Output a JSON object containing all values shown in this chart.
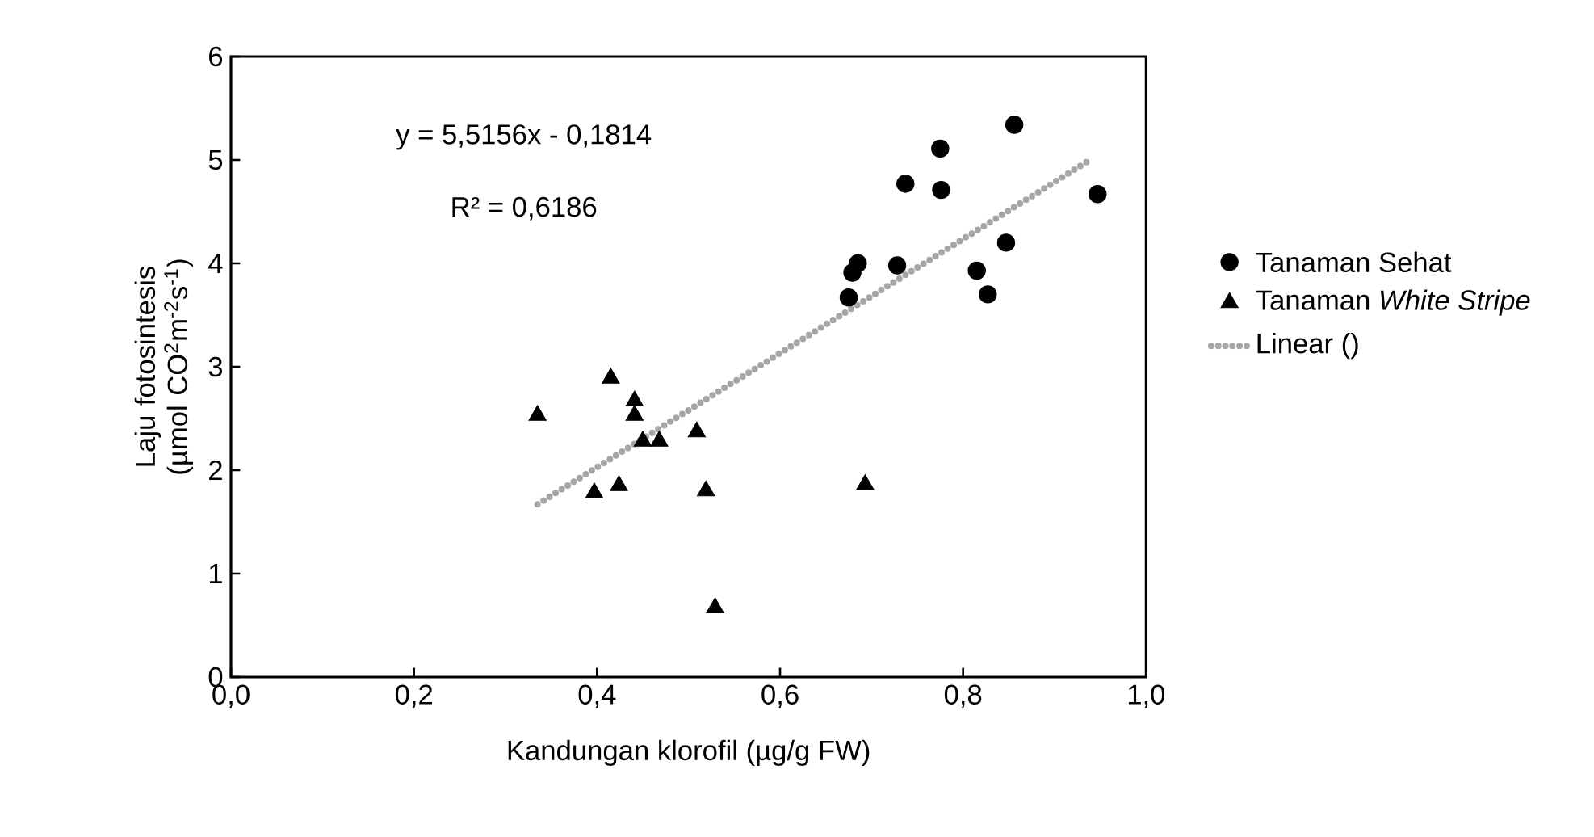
{
  "chart_data": {
    "type": "scatter",
    "xlabel": "Kandungan klorofil (µg/g FW)",
    "ylabel": "Laju fotosintesis (µmol CO$^{2}$m$^{-2}$s$^{-1}$)",
    "xlim": [
      0,
      1
    ],
    "ylim": [
      0,
      6
    ],
    "xticks": [
      {
        "value": 0,
        "label": "0,0"
      },
      {
        "value": 0.2,
        "label": "0,2"
      },
      {
        "value": 0.4,
        "label": "0,4"
      },
      {
        "value": 0.6,
        "label": "0,6"
      },
      {
        "value": 0.8,
        "label": "0,8"
      },
      {
        "value": 1,
        "label": "1,0"
      }
    ],
    "yticks": [
      0,
      1,
      2,
      3,
      4,
      5,
      6
    ],
    "legend": "right",
    "annotations": [
      "y = 5,5156x - 0,1814",
      "R² = 0,6186"
    ],
    "series": [
      {
        "name": "Tanaman Sehat",
        "marker": "circle",
        "color": "#000000",
        "x": [
          0.856,
          0.775,
          0.737,
          0.776,
          0.947,
          0.847,
          0.685,
          0.679,
          0.728,
          0.815,
          0.827,
          0.675
        ],
        "values": [
          5.34,
          5.11,
          4.77,
          4.71,
          4.67,
          4.2,
          4.0,
          3.91,
          3.98,
          3.93,
          3.7,
          3.67
        ]
      },
      {
        "name": "Tanaman *White Stripe*",
        "marker": "triangle",
        "color": "#000000",
        "x": [
          0.335,
          0.415,
          0.441,
          0.441,
          0.45,
          0.468,
          0.509,
          0.397,
          0.424,
          0.519,
          0.529,
          0.693
        ],
        "values": [
          2.53,
          2.89,
          2.67,
          2.53,
          2.28,
          2.28,
          2.37,
          1.78,
          1.85,
          1.8,
          0.67,
          1.86
        ]
      },
      {
        "name": "Linear ()",
        "type": "line",
        "marker": "none",
        "line_style": "dotted",
        "color": "#a6a6a6",
        "x": [
          0.335,
          0.935
        ],
        "values": [
          1.67,
          4.98
        ]
      }
    ]
  }
}
